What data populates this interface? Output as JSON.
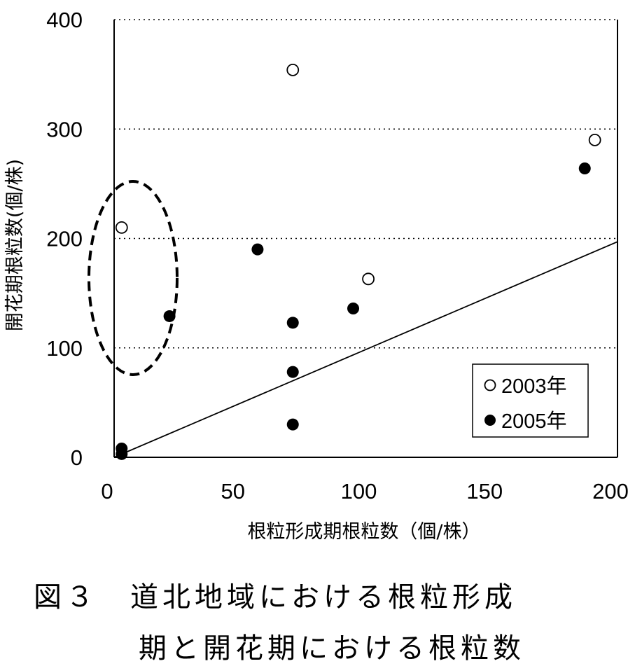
{
  "chart_data": {
    "type": "scatter",
    "xlabel": "根粒形成期根粒数（個/株）",
    "ylabel": "開花期根粒数(個/株)",
    "xlim": [
      0,
      200
    ],
    "ylim": [
      0,
      400
    ],
    "xticks": [
      0,
      50,
      100,
      150,
      200
    ],
    "yticks": [
      0,
      100,
      200,
      300,
      400
    ],
    "grid": "horizontal dotted",
    "legend_position": "bottom-right",
    "series": [
      {
        "name": "2003年",
        "marker": "open-circle",
        "color": "#000000",
        "points": [
          [
            3,
            210
          ],
          [
            71,
            354
          ],
          [
            101,
            163
          ],
          [
            191,
            290
          ]
        ]
      },
      {
        "name": "2005年",
        "marker": "filled-circle",
        "color": "#000000",
        "points": [
          [
            3,
            8
          ],
          [
            3,
            3
          ],
          [
            22,
            129
          ],
          [
            57,
            190
          ],
          [
            71,
            123
          ],
          [
            71,
            78
          ],
          [
            71,
            30
          ],
          [
            95,
            136
          ],
          [
            187,
            264
          ]
        ]
      }
    ],
    "reference_line": {
      "from": [
        0,
        0
      ],
      "to": [
        200,
        197
      ]
    },
    "annotation": {
      "shape": "dashed-ellipse"
    }
  },
  "caption": {
    "line1": "図３　道北地域における根粒形成",
    "line2": "期と開花期における根粒数"
  }
}
